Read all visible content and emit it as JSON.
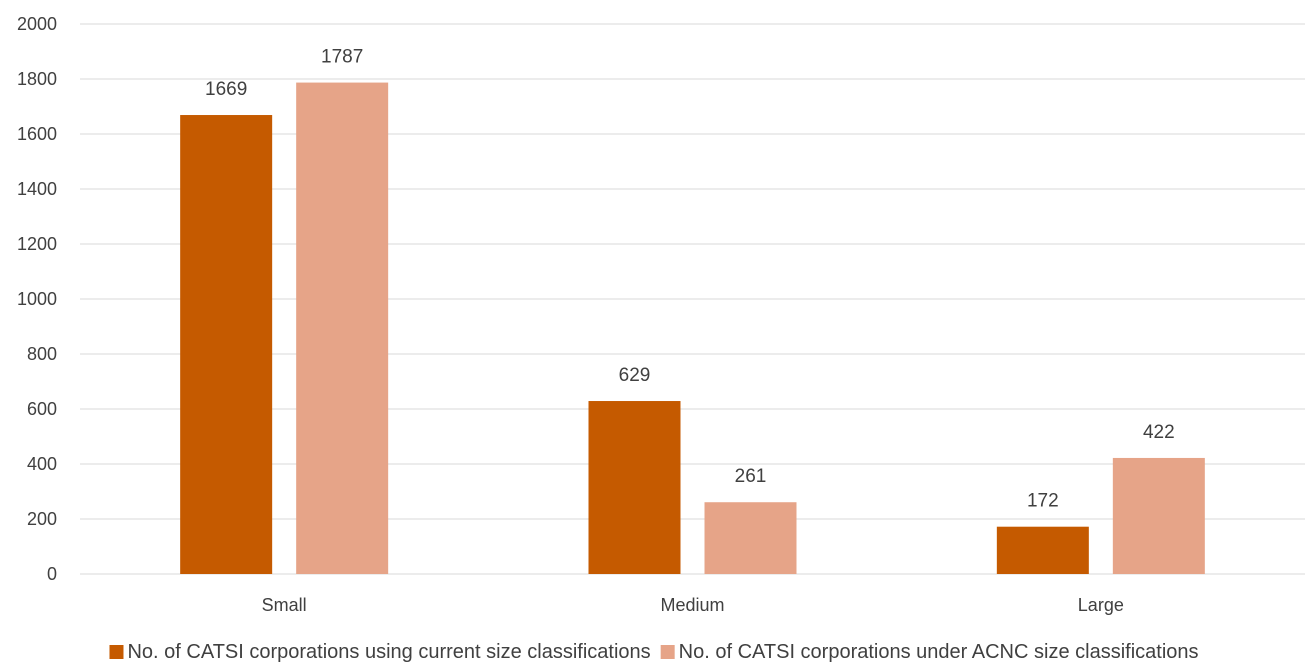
{
  "chart_data": {
    "type": "bar",
    "categories": [
      "Small",
      "Medium",
      "Large"
    ],
    "series": [
      {
        "name": "No. of CATSI corporations using current size classifications",
        "color": "#c55a00",
        "values": [
          1669,
          629,
          172
        ]
      },
      {
        "name": "No. of CATSI corporations under ACNC size classifications",
        "color": "#e6a488",
        "values": [
          1787,
          261,
          422
        ]
      }
    ],
    "yticks": [
      "0",
      "200",
      "400",
      "600",
      "800",
      "1000",
      "1200",
      "1400",
      "1600",
      "1800",
      "2000"
    ],
    "ylim": [
      0,
      2000
    ],
    "grid": true,
    "legend_position": "bottom",
    "title": "",
    "xlabel": "",
    "ylabel": ""
  }
}
